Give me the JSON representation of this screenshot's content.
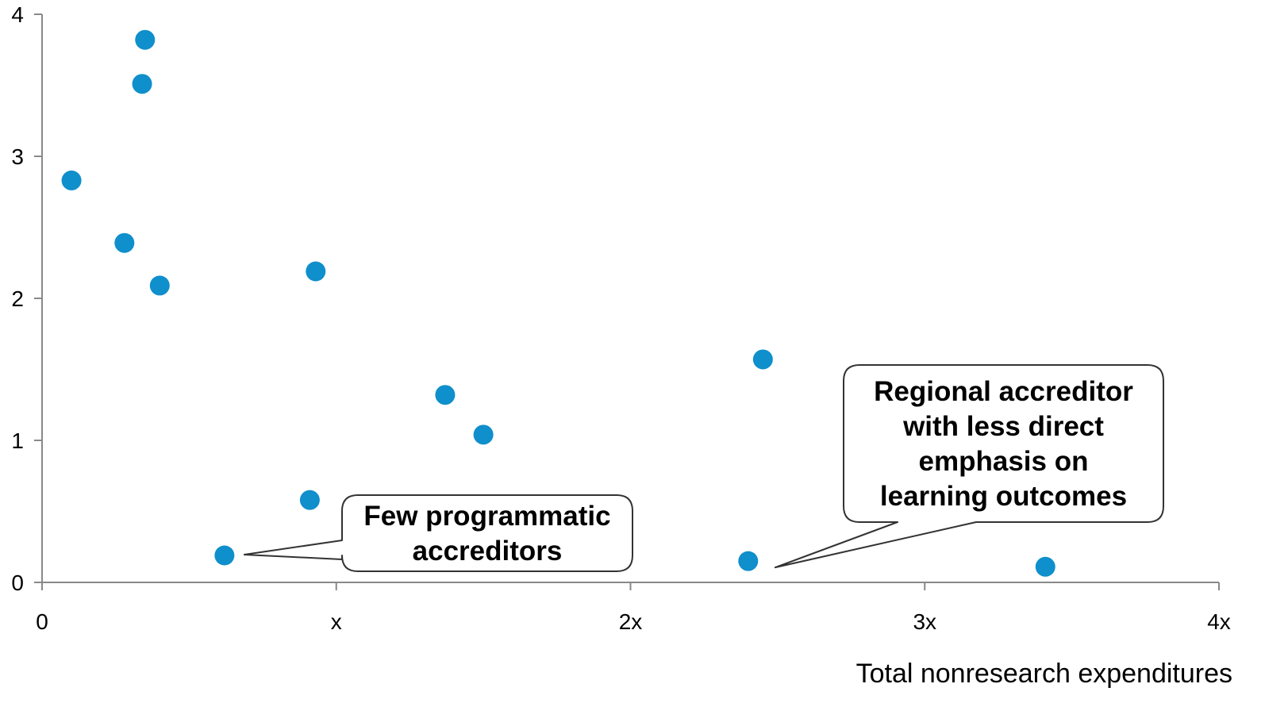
{
  "chart_data": {
    "type": "scatter",
    "title": "",
    "xlabel": "Total nonresearch expenditures",
    "ylabel": "",
    "xlim": [
      0,
      4
    ],
    "ylim": [
      0,
      4
    ],
    "x_ticks": [
      {
        "value": 0,
        "label": "0"
      },
      {
        "value": 1,
        "label": "x"
      },
      {
        "value": 2,
        "label": "2x"
      },
      {
        "value": 3,
        "label": "3x"
      },
      {
        "value": 4,
        "label": "4x"
      }
    ],
    "y_ticks": [
      {
        "value": 0,
        "label": "0"
      },
      {
        "value": 1,
        "label": "1"
      },
      {
        "value": 2,
        "label": "2"
      },
      {
        "value": 3,
        "label": "3"
      },
      {
        "value": 4,
        "label": "4"
      }
    ],
    "grid": false,
    "marker_color": "#0F8FCB",
    "points": [
      {
        "x": 0.1,
        "y": 2.83
      },
      {
        "x": 0.28,
        "y": 2.39
      },
      {
        "x": 0.34,
        "y": 3.51
      },
      {
        "x": 0.35,
        "y": 3.82
      },
      {
        "x": 0.4,
        "y": 2.09
      },
      {
        "x": 0.62,
        "y": 0.19
      },
      {
        "x": 0.91,
        "y": 0.58
      },
      {
        "x": 0.93,
        "y": 2.19
      },
      {
        "x": 1.37,
        "y": 1.32
      },
      {
        "x": 1.5,
        "y": 1.04
      },
      {
        "x": 2.4,
        "y": 0.15
      },
      {
        "x": 2.45,
        "y": 1.57
      },
      {
        "x": 3.41,
        "y": 0.11
      }
    ],
    "annotations": [
      {
        "lines": [
          "Few programmatic",
          "accreditors"
        ],
        "points_to": {
          "x": 0.62,
          "y": 0.19
        }
      },
      {
        "lines": [
          "Regional accreditor",
          "with less direct",
          "emphasis on",
          "learning outcomes"
        ],
        "points_to": {
          "x": 2.4,
          "y": 0.15
        }
      }
    ]
  }
}
